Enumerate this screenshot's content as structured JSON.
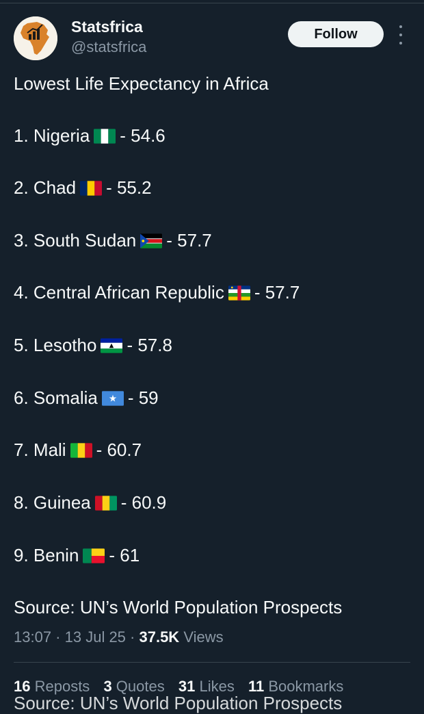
{
  "account": {
    "name": "Statsfrica",
    "handle": "@statsfrica",
    "follow_label": "Follow"
  },
  "tweet": {
    "title": "Lowest Life Expectancy in Africa",
    "items": [
      {
        "prefix": "1. Nigeria",
        "flag": "nigeria-flag",
        "suffix": "- 54.6"
      },
      {
        "prefix": "2. Chad",
        "flag": "chad-flag",
        "suffix": "- 55.2"
      },
      {
        "prefix": "3. South Sudan",
        "flag": "south-sudan-flag",
        "suffix": "- 57.7"
      },
      {
        "prefix": "4. Central African Republic",
        "flag": "central-african-republic-flag",
        "suffix": "- 57.7"
      },
      {
        "prefix": "5. Lesotho",
        "flag": "lesotho-flag",
        "suffix": "- 57.8"
      },
      {
        "prefix": "6. Somalia",
        "flag": "somalia-flag",
        "suffix": "- 59"
      },
      {
        "prefix": "7. Mali",
        "flag": "mali-flag",
        "suffix": "- 60.7"
      },
      {
        "prefix": "8. Guinea",
        "flag": "guinea-flag",
        "suffix": "- 60.9"
      },
      {
        "prefix": "9. Benin",
        "flag": "benin-flag",
        "suffix": "- 61"
      }
    ],
    "source": "Source: UN’s World Population Prospects",
    "ghost_source": "Source: UN’s World Population Prospects"
  },
  "meta": {
    "time": "13:07",
    "sep1": " · ",
    "date": "13 Jul 25",
    "sep2": " · ",
    "views_count": "37.5K",
    "views_label": " Views"
  },
  "stats": {
    "reposts_count": "16",
    "reposts_label": " Reposts",
    "quotes_count": "3",
    "quotes_label": " Quotes",
    "likes_count": "31",
    "likes_label": " Likes",
    "bookmarks_count": "11",
    "bookmarks_label": " Bookmarks"
  },
  "colors": {
    "background": "#15202b",
    "text": "#f7f9f9",
    "secondary": "#8b98a5",
    "divider": "#38444d",
    "follow_bg": "#eff3f4"
  }
}
